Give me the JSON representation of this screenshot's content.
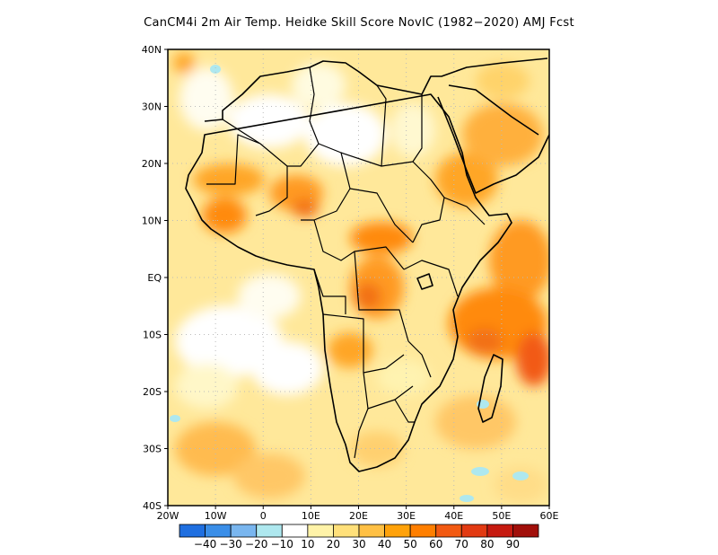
{
  "title": "CanCM4i  2m Air Temp. Heidke Skill Score NovIC (1982−2020) AMJ Fcst",
  "map": {
    "lon_range": [
      -20,
      60
    ],
    "lat_range": [
      -40,
      40
    ],
    "lat_labels": [
      {
        "value": 40,
        "text": "40N"
      },
      {
        "value": 30,
        "text": "30N"
      },
      {
        "value": 20,
        "text": "20N"
      },
      {
        "value": 10,
        "text": "10N"
      },
      {
        "value": 0,
        "text": "EQ"
      },
      {
        "value": -10,
        "text": "10S"
      },
      {
        "value": -20,
        "text": "20S"
      },
      {
        "value": -30,
        "text": "30S"
      },
      {
        "value": -40,
        "text": "40S"
      }
    ],
    "lon_labels": [
      {
        "value": -20,
        "text": "20W"
      },
      {
        "value": -10,
        "text": "10W"
      },
      {
        "value": 0,
        "text": "0"
      },
      {
        "value": 10,
        "text": "10E"
      },
      {
        "value": 20,
        "text": "20E"
      },
      {
        "value": 30,
        "text": "30E"
      },
      {
        "value": 40,
        "text": "40E"
      },
      {
        "value": 50,
        "text": "50E"
      },
      {
        "value": 60,
        "text": "60E"
      }
    ],
    "grid": "dotted"
  },
  "colorbar": {
    "colors": [
      "#1f6fe0",
      "#3a8ee8",
      "#79b6ef",
      "#aee8ef",
      "#ffffff",
      "#fff3a8",
      "#ffe07a",
      "#ffc044",
      "#ffa20a",
      "#ff7f00",
      "#f25a12",
      "#e23a12",
      "#c61a10",
      "#a10f0a"
    ],
    "labels": [
      "−40",
      "−30",
      "−20",
      "−10",
      "10",
      "20",
      "30",
      "40",
      "50",
      "60",
      "70",
      "80",
      "90"
    ]
  }
}
